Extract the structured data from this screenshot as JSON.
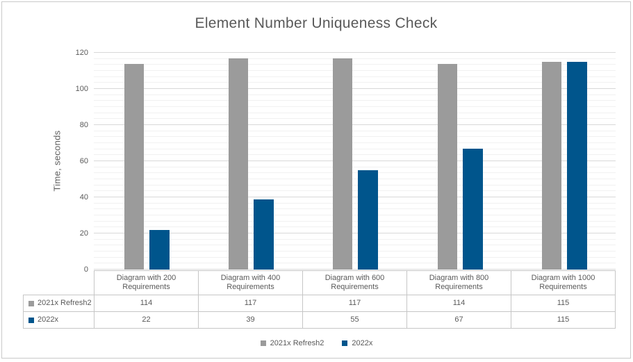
{
  "chart_data": {
    "type": "bar",
    "title": "Element Number Uniqueness Check",
    "xlabel": "",
    "ylabel": "Time, seconds",
    "categories": [
      "Diagram with 200 Requirements",
      "Diagram with 400 Requirements",
      "Diagram with 600 Requirements",
      "Diagram with 800 Requirements",
      "Diagram with 1000 Requirements"
    ],
    "series": [
      {
        "name": "2021x Refresh2",
        "color": "#9b9b9b",
        "values": [
          114,
          117,
          117,
          114,
          115
        ]
      },
      {
        "name": "2022x",
        "color": "#00558c",
        "values": [
          22,
          39,
          55,
          67,
          115
        ]
      }
    ],
    "ylim": [
      0,
      120
    ],
    "y_major_unit": 20,
    "y_minors_per_major": 6,
    "y_tick_labels": [
      "0",
      "20",
      "40",
      "60",
      "80",
      "100",
      "120"
    ],
    "grid": true,
    "legend_position": "bottom",
    "data_table_shown": true
  },
  "colors": {
    "text": "#595959",
    "major_gridline": "#d8d8d8",
    "minor_gridline": "#f1f1f1",
    "table_border": "#c6c6c6",
    "frame_border": "#c9c9c9"
  }
}
